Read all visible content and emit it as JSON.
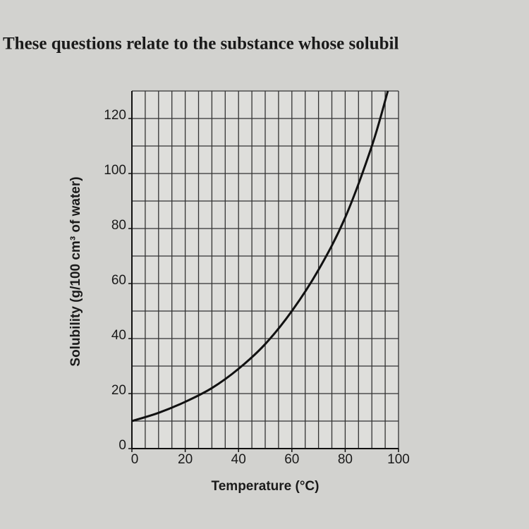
{
  "heading": "These questions relate to the substance whose solubil",
  "chart_data": {
    "type": "line",
    "x_label": "Temperature (°C)",
    "y_label": "Solubility (g/100 cm³ of water)",
    "x": [
      0,
      10,
      20,
      30,
      40,
      50,
      60,
      70,
      80,
      90,
      96
    ],
    "values": [
      10,
      13,
      17,
      22,
      29,
      38,
      50,
      65,
      84,
      110,
      130
    ],
    "color": "#111111",
    "xlim": [
      0,
      100
    ],
    "xticks": [
      0,
      20,
      40,
      60,
      80,
      100
    ],
    "ylim": [
      0,
      130
    ],
    "yticks": [
      0,
      20,
      40,
      60,
      80,
      100,
      120
    ],
    "grid": true,
    "grid_step_x": 5,
    "grid_step_y": 10
  }
}
